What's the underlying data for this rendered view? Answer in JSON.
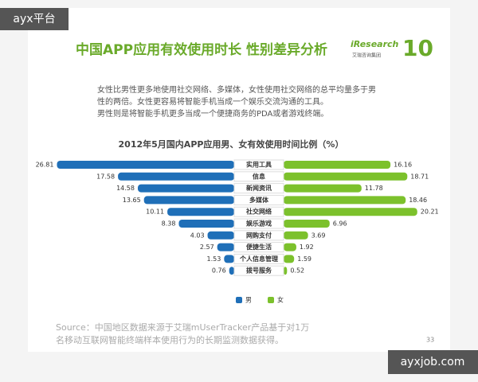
{
  "watermark": {
    "top": "ayx平台",
    "bottom": "ayxjob.com"
  },
  "slide": {
    "title": "中国APP应用有效使用时长 性别差异分析",
    "logo": {
      "brand": "iResearch",
      "group": "艾瑞咨询集团",
      "anniversary": "10"
    },
    "description": [
      "女性比男性更多地使用社交网络、多媒体，女性使用社交网络的总平均量多于男",
      "性的两倍。女性更容易将智能手机当成一个娱乐交流沟通的工具。",
      "男性则是将智能手机更多当成一个便捷商务的PDA或者游戏终端。"
    ],
    "source": [
      "Source：中国地区数据来源于艾瑞mUserTracker产品基于对1万",
      "名移动互联网智能终端样本使用行为的长期监测数据获得。"
    ],
    "page_number": "33"
  },
  "chart_data": {
    "type": "butterfly",
    "title": "2012年5月国内APP应用男、女有效使用时间比例（%）",
    "categories": [
      "实用工具",
      "信息",
      "新闻资讯",
      "多媒体",
      "社交网络",
      "娱乐游戏",
      "网购支付",
      "便捷生活",
      "个人信息管理",
      "拨号服务"
    ],
    "series": [
      {
        "name": "男",
        "color": "#1f6fb8",
        "values": [
          26.81,
          17.58,
          14.58,
          13.65,
          10.11,
          8.38,
          4.03,
          2.57,
          1.53,
          0.76
        ]
      },
      {
        "name": "女",
        "color": "#7cc12c",
        "values": [
          16.16,
          18.71,
          11.78,
          18.46,
          20.21,
          6.96,
          3.69,
          1.92,
          1.59,
          0.52
        ]
      }
    ]
  }
}
